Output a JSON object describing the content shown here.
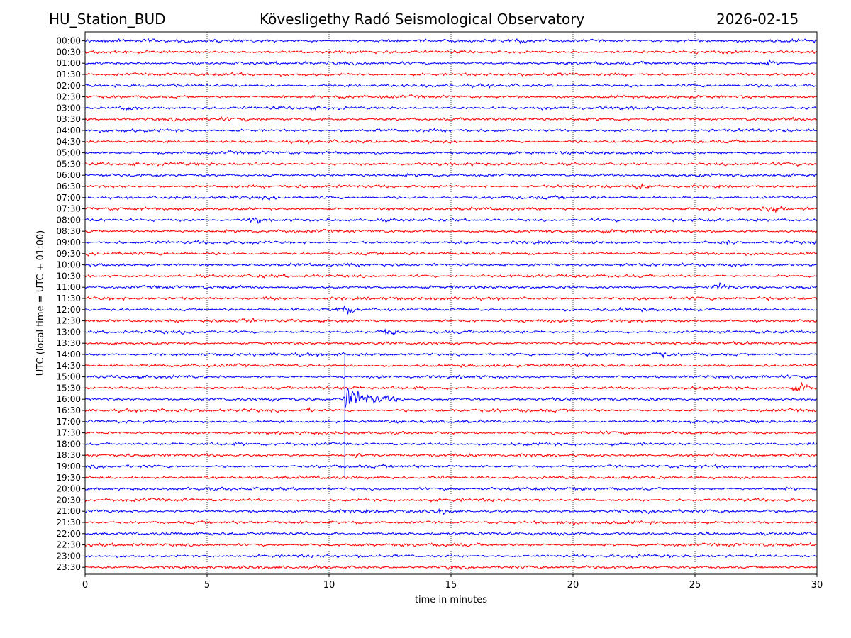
{
  "header": {
    "station": "HU_Station_BUD",
    "observatory": "Kövesligethy Radó Seismological Observatory",
    "date": "2026-02-15"
  },
  "chart_data": {
    "type": "line",
    "title": "Kövesligethy Radó Seismological Observatory",
    "xlabel": "time in minutes",
    "ylabel": "UTC (local time = UTC + 01:00)",
    "xlim": [
      0,
      30
    ],
    "x_ticks": [
      0,
      5,
      10,
      15,
      20,
      25,
      30
    ],
    "x_tick_labels": [
      "0",
      "5",
      "10",
      "15",
      "20",
      "25",
      "30"
    ],
    "grid": "vertical dotted at x ticks",
    "colors": [
      "#0000ff",
      "#ff0000"
    ],
    "rows": [
      "00:00",
      "00:30",
      "01:00",
      "01:30",
      "02:00",
      "02:30",
      "03:00",
      "03:30",
      "04:00",
      "04:30",
      "05:00",
      "05:30",
      "06:00",
      "06:30",
      "07:00",
      "07:30",
      "08:00",
      "08:30",
      "09:00",
      "09:30",
      "10:00",
      "10:30",
      "11:00",
      "11:30",
      "12:00",
      "12:30",
      "13:00",
      "13:30",
      "14:00",
      "14:30",
      "15:00",
      "15:30",
      "16:00",
      "16:30",
      "17:00",
      "17:30",
      "18:00",
      "18:30",
      "19:00",
      "19:30",
      "20:00",
      "20:30",
      "21:00",
      "21:30",
      "22:00",
      "22:30",
      "23:00",
      "23:30"
    ],
    "events": [
      {
        "row": "00:00",
        "minute": 17.7,
        "amplitude": 1.3
      },
      {
        "row": "01:00",
        "minute": 28.0,
        "amplitude": 1.5
      },
      {
        "row": "02:00",
        "minute": 2.0,
        "amplitude": 1.2
      },
      {
        "row": "03:00",
        "minute": 1.8,
        "amplitude": 1.6
      },
      {
        "row": "06:30",
        "minute": 22.7,
        "amplitude": 1.4
      },
      {
        "row": "07:30",
        "minute": 28.3,
        "amplitude": 2.0
      },
      {
        "row": "08:00",
        "minute": 7.0,
        "amplitude": 1.8
      },
      {
        "row": "09:00",
        "minute": 26.3,
        "amplitude": 1.4
      },
      {
        "row": "11:00",
        "minute": 26.1,
        "amplitude": 2.2
      },
      {
        "row": "11:30",
        "minute": 7.5,
        "amplitude": 1.3
      },
      {
        "row": "12:00",
        "minute": 10.7,
        "amplitude": 2.0
      },
      {
        "row": "12:30",
        "minute": 6.6,
        "amplitude": 1.4
      },
      {
        "row": "13:00",
        "minute": 12.4,
        "amplitude": 1.6
      },
      {
        "row": "14:00",
        "minute": 23.6,
        "amplitude": 1.6
      },
      {
        "row": "15:30",
        "minute": 29.4,
        "amplitude": 2.2
      },
      {
        "row": "16:00",
        "minute": 10.65,
        "amplitude": 6.0
      },
      {
        "row": "16:30",
        "minute": 9.2,
        "amplitude": 1.4
      },
      {
        "row": "18:30",
        "minute": 11.0,
        "amplitude": 1.6
      },
      {
        "row": "19:30",
        "minute": 14.5,
        "amplitude": 1.3
      },
      {
        "row": "21:00",
        "minute": 14.6,
        "amplitude": 1.5
      },
      {
        "row": "21:30",
        "minute": 19.7,
        "amplitude": 1.5
      },
      {
        "row": "22:00",
        "minute": 25.4,
        "amplitude": 1.3
      },
      {
        "row": "23:30",
        "minute": 15.1,
        "amplitude": 1.4
      }
    ]
  }
}
